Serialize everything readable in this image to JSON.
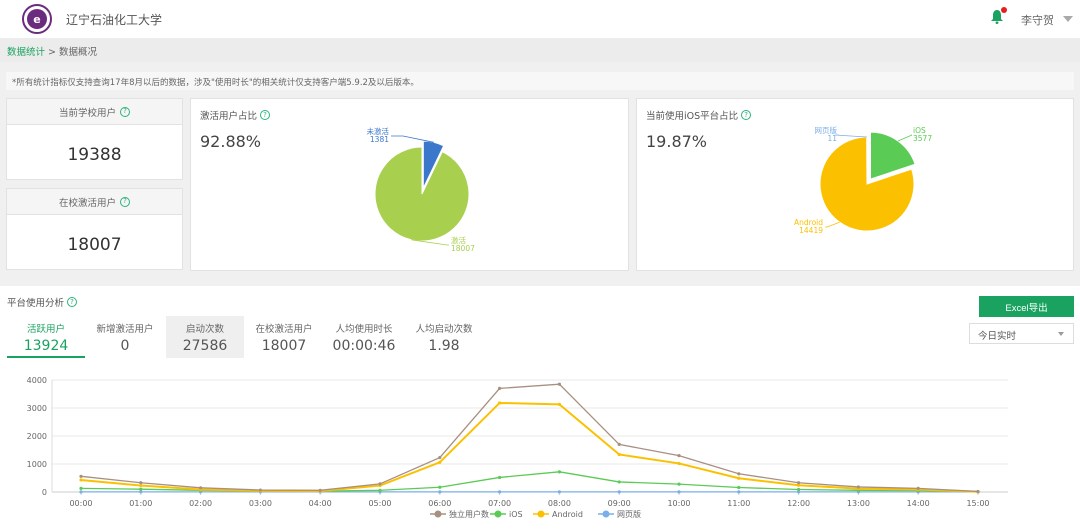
{
  "header": {
    "logo_icon": "university-crest-icon",
    "school_name": "辽宁石油化工大学",
    "notification_icon": "bell-icon",
    "user_name": "李守贺"
  },
  "breadcrumb": {
    "parent": "数据统计",
    "separator": ">",
    "current": "数据概况"
  },
  "notice": "*所有统计指标仅支持查询17年8月以后的数据，涉及\"使用时长\"的相关统计仅支持客户端5.9.2及以后版本。",
  "stats": {
    "school_users": {
      "label": "当前学校用户",
      "value": "19388"
    },
    "active_users": {
      "label": "在校激活用户",
      "value": "18007"
    }
  },
  "activation_card": {
    "title": "激活用户占比",
    "percent": "92.88%"
  },
  "ios_card": {
    "title": "当前使用iOS平台占比",
    "percent": "19.87%"
  },
  "chart_data": [
    {
      "type": "pie",
      "title": "激活用户占比",
      "slices": [
        {
          "label": "未激活",
          "value": 1381,
          "color": "#3b78cc"
        },
        {
          "label": "激活",
          "value": 18007,
          "color": "#a8cf4e"
        }
      ]
    },
    {
      "type": "pie",
      "title": "当前使用iOS平台占比",
      "slices": [
        {
          "label": "iOS",
          "value": 3577,
          "color": "#5acb54"
        },
        {
          "label": "Android",
          "value": 14419,
          "color": "#fbc100"
        },
        {
          "label": "网页版",
          "value": 11,
          "color": "#7aaee8"
        }
      ]
    },
    {
      "type": "line",
      "title": "",
      "xlabel": "",
      "ylabel": "",
      "x": [
        "00:00",
        "01:00",
        "02:00",
        "03:00",
        "04:00",
        "05:00",
        "06:00",
        "07:00",
        "08:00",
        "09:00",
        "10:00",
        "11:00",
        "12:00",
        "13:00",
        "14:00",
        "15:00"
      ],
      "yticks": [
        0,
        1000,
        2000,
        3000,
        4000
      ],
      "ylim": [
        0,
        4000
      ],
      "grid": true,
      "legend": "bottom",
      "series": [
        {
          "name": "独立用户数",
          "color": "#a89080",
          "values": [
            560,
            330,
            150,
            70,
            60,
            290,
            1230,
            3700,
            3850,
            1700,
            1300,
            650,
            330,
            180,
            130,
            20
          ]
        },
        {
          "name": "iOS",
          "color": "#5acb54",
          "values": [
            130,
            100,
            60,
            30,
            30,
            60,
            170,
            520,
            720,
            360,
            280,
            160,
            90,
            60,
            50,
            10
          ]
        },
        {
          "name": "Android",
          "color": "#fbc100",
          "values": [
            430,
            230,
            90,
            40,
            30,
            230,
            1060,
            3180,
            3130,
            1340,
            1020,
            490,
            240,
            120,
            90,
            10
          ]
        },
        {
          "name": "网页版",
          "color": "#7aaee8",
          "values": [
            5,
            5,
            5,
            5,
            5,
            5,
            5,
            5,
            5,
            5,
            5,
            5,
            5,
            5,
            5,
            5
          ]
        }
      ]
    }
  ],
  "analysis": {
    "title": "平台使用分析",
    "tabs": [
      {
        "label": "活跃用户",
        "value": "13924"
      },
      {
        "label": "新增激活用户",
        "value": "0"
      },
      {
        "label": "启动次数",
        "value": "27586"
      },
      {
        "label": "在校激活用户",
        "value": "18007"
      },
      {
        "label": "人均使用时长",
        "value": "00:00:46"
      },
      {
        "label": "人均启动次数",
        "value": "1.98"
      }
    ],
    "export_label": "Excel导出",
    "range_select": "今日实时"
  },
  "help_glyph": "?"
}
